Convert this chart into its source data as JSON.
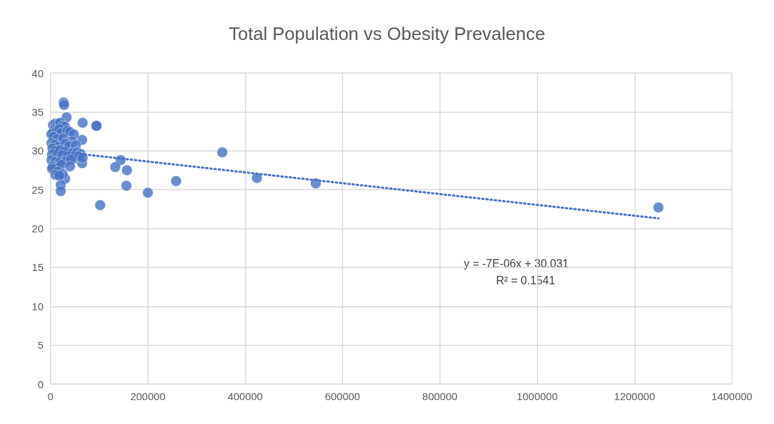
{
  "chart_data": {
    "type": "scatter",
    "title": "Total Population vs Obesity Prevalence",
    "xlim": [
      0,
      1400000
    ],
    "xticks": [
      0,
      200000,
      400000,
      600000,
      800000,
      1000000,
      1200000,
      1400000
    ],
    "ylim": [
      0,
      40
    ],
    "yticks": [
      0,
      5,
      10,
      15,
      20,
      25,
      30,
      35,
      40
    ],
    "grid": true,
    "marker": "circle",
    "annotations": [
      "y = -7E-06x + 30.031",
      "R² = 0.1541"
    ],
    "series": [
      {
        "color": "#4472c4",
        "x": [
          1249000,
          545000,
          424000,
          353000,
          258000,
          200000,
          157000,
          156000,
          144000,
          133000,
          102000,
          95000,
          94000,
          66000,
          65000,
          65000,
          33000,
          27000,
          28000,
          30000,
          21000,
          21000,
          1500,
          5000,
          10000,
          15000,
          20000,
          25000,
          30000,
          8000,
          3000,
          12000,
          18000,
          22000,
          35000,
          40000,
          48000,
          6000,
          14000,
          26000,
          44000,
          2000,
          9000,
          16000,
          30000,
          38000,
          52000,
          4000,
          11000,
          20000,
          28000,
          45000,
          55000,
          62000,
          3000,
          13000,
          24000,
          35000,
          48000,
          58000,
          66000,
          2000,
          10000,
          19000,
          32000,
          42000,
          5000,
          12000,
          22000,
          40000,
          3000,
          15000,
          10000,
          25000,
          18000
        ],
        "values": [
          22.7,
          25.8,
          26.5,
          29.8,
          26.1,
          24.6,
          27.5,
          25.5,
          28.8,
          27.9,
          23.0,
          33.2,
          33.2,
          33.6,
          31.4,
          28.4,
          34.3,
          36.2,
          35.9,
          26.4,
          25.6,
          24.8,
          32.1,
          33.3,
          33.5,
          33.4,
          33.6,
          33.2,
          33.1,
          32.7,
          32.2,
          32.5,
          32.8,
          32.3,
          32.6,
          32.4,
          32.1,
          31.8,
          31.5,
          31.6,
          31.2,
          31.0,
          30.8,
          30.5,
          30.9,
          30.6,
          30.7,
          30.3,
          30.0,
          30.1,
          29.9,
          29.7,
          29.8,
          29.6,
          29.5,
          29.3,
          29.4,
          29.2,
          29.0,
          29.3,
          29.1,
          28.8,
          28.6,
          28.5,
          28.7,
          28.9,
          28.0,
          27.8,
          28.2,
          28.0,
          27.7,
          27.3,
          26.9,
          27.0,
          26.8
        ]
      },
      {
        "type": "line",
        "color": "#4472c4",
        "line_style": "dotted",
        "marker": "none",
        "x": [
          1500,
          1249000
        ],
        "values": [
          30.0,
          21.3
        ]
      }
    ]
  }
}
